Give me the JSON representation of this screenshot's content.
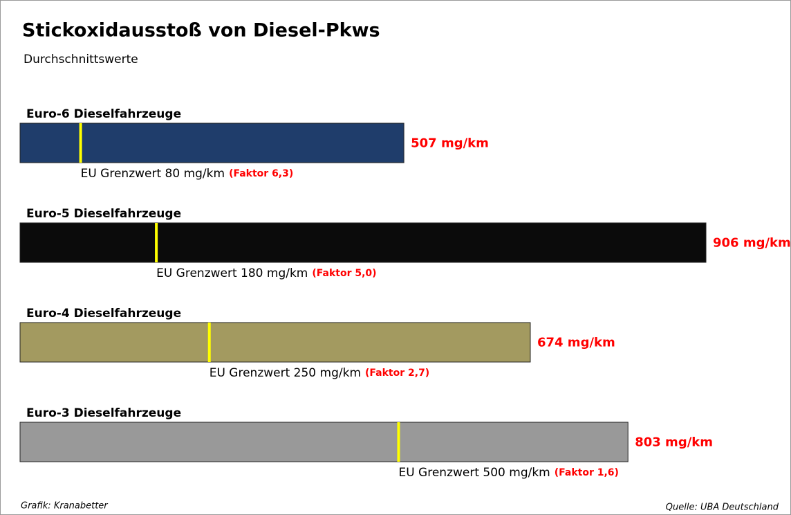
{
  "chart_data": {
    "type": "bar",
    "title": "Stickoxidausstoß von Diesel-Pkws",
    "subtitle": "Durchschnittswerte",
    "categories": [
      "Euro-6 Dieselfahrzeuge",
      "Euro-5 Dieselfahrzeuge",
      "Euro-4 Dieselfahrzeuge",
      "Euro-3 Dieselfahrzeuge"
    ],
    "values": [
      507,
      906,
      674,
      803
    ],
    "value_labels": [
      "507 mg/km",
      "906 mg/km",
      "674 mg/km",
      "803 mg/km"
    ],
    "colors": [
      "#1f3d6b",
      "#0b0b0b",
      "#a39a60",
      "#999999"
    ],
    "value_label_color": "#ff0000",
    "limits": {
      "values": [
        80,
        180,
        250,
        500
      ],
      "labels": [
        "EU Grenzwert 80 mg/km",
        "EU Grenzwert 180 mg/km",
        "EU Grenzwert 250 mg/km",
        "EU Grenzwert 500 mg/km"
      ],
      "factors": [
        "(Faktor 6,3)",
        "(Faktor 5,0)",
        "(Faktor 2,7)",
        "(Faktor 1,6)"
      ],
      "color": "#ffff00"
    },
    "credit": "Grafik: Kranabetter",
    "source": "Quelle: UBA Deutschland"
  }
}
